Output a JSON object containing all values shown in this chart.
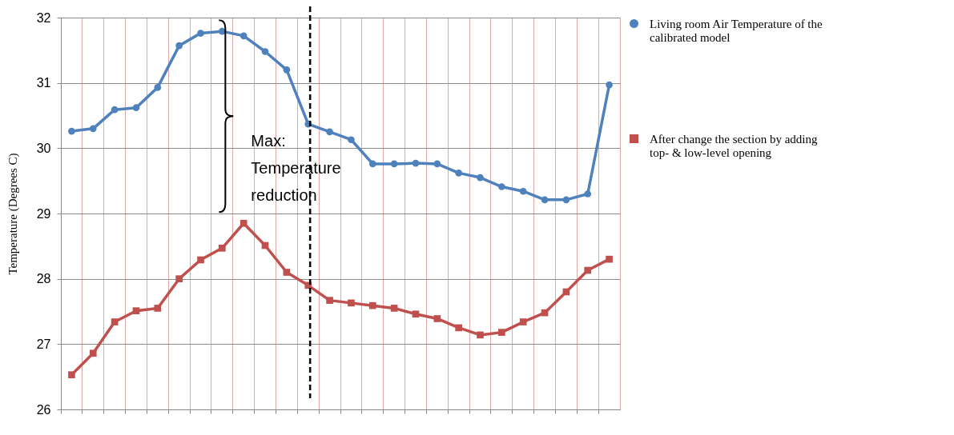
{
  "chart_data": {
    "type": "line",
    "ylabel": "Temperature (Degrees C)",
    "categories": [
      null,
      null,
      null,
      null,
      null,
      null,
      null,
      null,
      null,
      null,
      null,
      null,
      null,
      null,
      null,
      null,
      null,
      null,
      null,
      null,
      null,
      null,
      null,
      null,
      null,
      null
    ],
    "ylim": [
      26,
      32
    ],
    "yticks": [
      26,
      27,
      28,
      29,
      30,
      31,
      32
    ],
    "grid": true,
    "legend": "right",
    "series": [
      {
        "name": "Living room Air Temperature of the calibrated model",
        "color": "#4f81bd",
        "marker": "circle",
        "values": [
          30.26,
          30.3,
          30.59,
          30.62,
          30.93,
          31.57,
          31.76,
          31.79,
          31.72,
          31.48,
          31.2,
          30.37,
          30.25,
          30.13,
          29.76,
          29.76,
          29.77,
          29.76,
          29.62,
          29.55,
          29.41,
          29.34,
          29.21,
          29.21,
          29.3,
          30.97
        ]
      },
      {
        "name": "After change the section by adding top- & low-level opening",
        "color": "#c0504d",
        "marker": "square",
        "values": [
          26.53,
          26.86,
          27.34,
          27.51,
          27.55,
          28.0,
          28.29,
          28.47,
          28.85,
          28.51,
          28.1,
          27.9,
          27.67,
          27.63,
          27.59,
          27.55,
          27.46,
          27.39,
          27.25,
          27.14,
          27.18,
          27.34,
          27.48,
          27.8,
          28.13,
          28.3
        ]
      }
    ],
    "annotations": [
      "Max: Temperature reduction"
    ]
  }
}
